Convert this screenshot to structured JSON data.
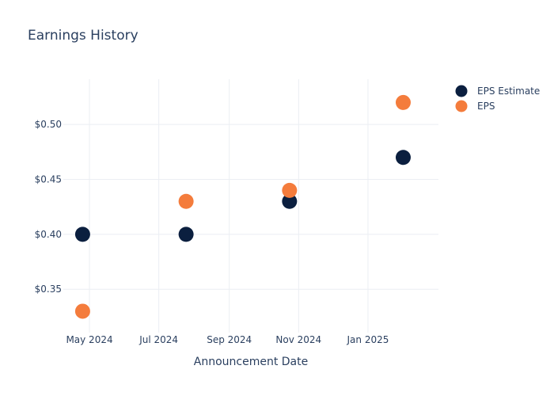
{
  "chart_data": {
    "type": "scatter",
    "title": "Earnings History",
    "xlabel": "Announcement Date",
    "ylabel": "",
    "x_tick_labels": [
      {
        "date": "2024-05-01",
        "label": "May 2024"
      },
      {
        "date": "2024-07-01",
        "label": "Jul 2024"
      },
      {
        "date": "2024-09-01",
        "label": "Sep 2024"
      },
      {
        "date": "2024-11-01",
        "label": "Nov 2024"
      },
      {
        "date": "2025-01-01",
        "label": "Jan 2025"
      }
    ],
    "y_ticks": [
      {
        "value": 0.35,
        "label": "$0.35"
      },
      {
        "value": 0.4,
        "label": "$0.40"
      },
      {
        "value": 0.45,
        "label": "$0.45"
      },
      {
        "value": 0.5,
        "label": "$0.50"
      }
    ],
    "x_range": [
      "2024-04-08",
      "2025-03-04"
    ],
    "y_range": [
      0.3105,
      0.5412
    ],
    "grid": true,
    "legend_position": "top-right",
    "series": [
      {
        "name": "EPS Estimate",
        "color": "#0b1f3f",
        "points": [
          {
            "x": "2024-04-25",
            "y": 0.4
          },
          {
            "x": "2024-07-25",
            "y": 0.4
          },
          {
            "x": "2024-10-24",
            "y": 0.43
          },
          {
            "x": "2025-02-01",
            "y": 0.47
          }
        ]
      },
      {
        "name": "EPS",
        "color": "#f47c3c",
        "points": [
          {
            "x": "2024-04-25",
            "y": 0.33
          },
          {
            "x": "2024-07-25",
            "y": 0.43
          },
          {
            "x": "2024-10-24",
            "y": 0.44
          },
          {
            "x": "2025-02-01",
            "y": 0.52
          }
        ]
      }
    ]
  }
}
